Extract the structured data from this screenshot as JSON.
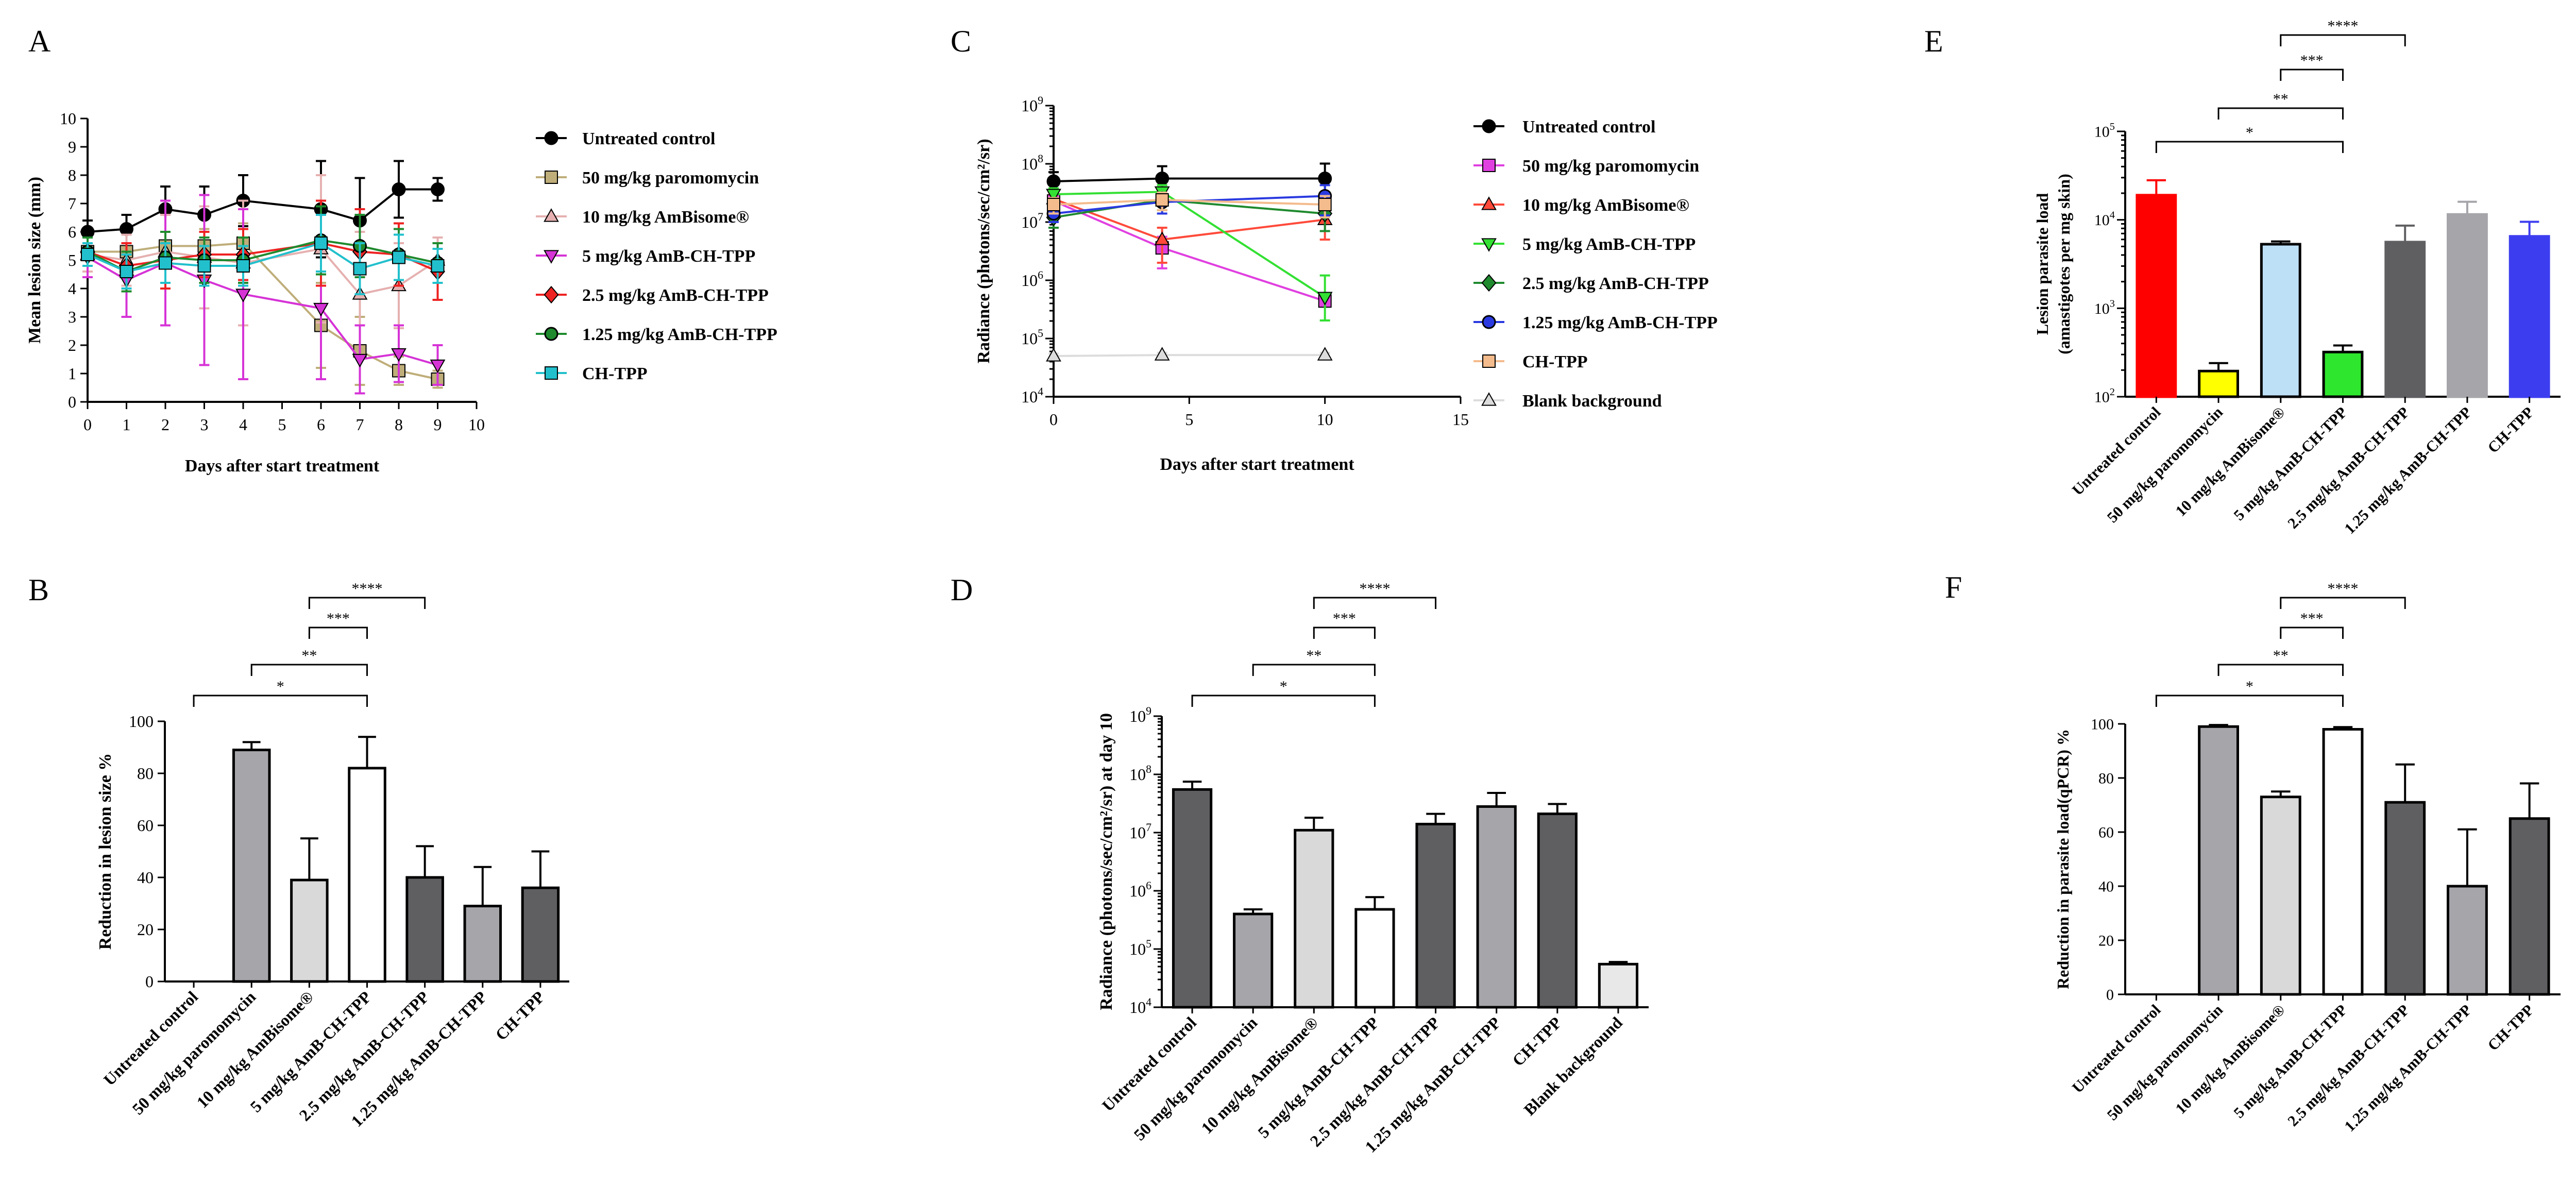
{
  "figure": {
    "panel_letters": [
      "A",
      "B",
      "C",
      "D",
      "E",
      "F"
    ]
  },
  "chart_data": [
    {
      "id": "A",
      "type": "line",
      "xlabel": "Days after start treatment",
      "ylabel": "Mean lesion size (mm)",
      "xlim": [
        0,
        10
      ],
      "ylim": [
        0,
        10
      ],
      "x_ticks": [
        "0",
        "1",
        "2",
        "3",
        "4",
        "5",
        "6",
        "7",
        "8",
        "9",
        "10"
      ],
      "y_ticks": [
        "0",
        "1",
        "2",
        "3",
        "4",
        "5",
        "6",
        "7",
        "8",
        "9",
        "10"
      ],
      "x": [
        0,
        1,
        2,
        3,
        4,
        6,
        7,
        8,
        9
      ],
      "legend_position": "right",
      "series": [
        {
          "name": "Untreated control",
          "color": "#000000",
          "marker": "circle",
          "values": [
            6.0,
            6.1,
            6.8,
            6.6,
            7.1,
            6.8,
            6.4,
            7.5,
            7.5
          ],
          "errors": [
            0.4,
            0.5,
            0.8,
            1.0,
            0.9,
            1.7,
            1.5,
            1.0,
            0.4
          ]
        },
        {
          "name": "50 mg/kg paromomycin",
          "color": "#bfae7a",
          "marker": "square",
          "values": [
            5.3,
            5.3,
            5.5,
            5.5,
            5.6,
            2.7,
            1.8,
            1.1,
            0.8
          ],
          "errors": [
            0.5,
            0.6,
            0.5,
            0.6,
            0.7,
            1.5,
            1.2,
            0.5,
            0.3
          ]
        },
        {
          "name": "10 mg/kg AmBisome®",
          "color": "#e6b0b0",
          "marker": "triangle-up",
          "values": [
            5.2,
            5.0,
            5.3,
            5.1,
            4.9,
            5.4,
            3.8,
            4.1,
            5.0
          ],
          "errors": [
            0.6,
            0.9,
            1.3,
            1.8,
            2.2,
            2.6,
            2.2,
            1.5,
            0.8
          ]
        },
        {
          "name": "5 mg/kg AmB-CH-TPP",
          "color": "#d633d6",
          "marker": "triangle-down",
          "values": [
            5.1,
            4.3,
            4.9,
            4.3,
            3.8,
            3.3,
            1.5,
            1.7,
            1.3
          ],
          "errors": [
            0.7,
            1.3,
            2.2,
            3.0,
            3.0,
            2.5,
            1.2,
            1.0,
            0.7
          ]
        },
        {
          "name": "2.5 mg/kg AmB-CH-TPP",
          "color": "#ee2222",
          "marker": "diamond",
          "values": [
            5.3,
            4.8,
            5.0,
            5.2,
            5.2,
            5.6,
            5.3,
            5.2,
            4.6
          ],
          "errors": [
            0.5,
            0.8,
            1.0,
            0.8,
            0.9,
            1.5,
            1.5,
            1.1,
            1.0
          ]
        },
        {
          "name": "1.25 mg/kg AmB-CH-TPP",
          "color": "#1f8a2e",
          "marker": "circle",
          "values": [
            5.3,
            4.6,
            5.1,
            5.0,
            5.0,
            5.7,
            5.5,
            5.2,
            4.9
          ],
          "errors": [
            0.5,
            0.7,
            0.9,
            0.8,
            0.8,
            1.2,
            1.1,
            0.9,
            0.7
          ]
        },
        {
          "name": "CH-TPP",
          "color": "#22c0cc",
          "marker": "square",
          "values": [
            5.2,
            4.6,
            4.9,
            4.8,
            4.8,
            5.6,
            4.7,
            5.1,
            4.8
          ],
          "errors": [
            0.4,
            0.6,
            0.7,
            0.7,
            0.7,
            1.0,
            0.9,
            0.8,
            0.6
          ]
        }
      ]
    },
    {
      "id": "B",
      "type": "bar",
      "ylabel": "Reduction in lesion size %",
      "ylim": [
        0,
        100
      ],
      "y_ticks": [
        "0",
        "20",
        "40",
        "60",
        "80",
        "100"
      ],
      "categories": [
        "Untreated control",
        "50 mg/kg paromomycin",
        "10 mg/kg AmBisome®",
        "5 mg/kg AmB-CH-TPP",
        "2.5 mg/kg AmB-CH-TPP",
        "1.25 mg/kg AmB-CH-TPP",
        "CH-TPP"
      ],
      "values": [
        0,
        89,
        39,
        82,
        40,
        29,
        36
      ],
      "errors": [
        0,
        3,
        16,
        12,
        12,
        15,
        14
      ],
      "colors": [
        "#a5a5aa",
        "#a5a5aa",
        "#d9d9d9",
        "#ffffff",
        "#5f5f62",
        "#a5a5aa",
        "#5f5f62"
      ],
      "significance": [
        {
          "from": 0,
          "to": 3,
          "label": "*"
        },
        {
          "from": 1,
          "to": 3,
          "label": "**"
        },
        {
          "from": 2,
          "to": 3,
          "label": "***"
        },
        {
          "from": 2,
          "to": 4,
          "label": "****"
        }
      ]
    },
    {
      "id": "C",
      "type": "line",
      "y_scale": "log",
      "xlabel": "Days after start treatment",
      "ylabel": "Radiance (photons/sec/cm²/sr)",
      "xlim": [
        0,
        15
      ],
      "ylim_log10": [
        4,
        9
      ],
      "x_ticks": [
        "0",
        "5",
        "10",
        "15"
      ],
      "y_tick_exponents": [
        "4",
        "5",
        "6",
        "7",
        "8",
        "9"
      ],
      "x": [
        0,
        4,
        10
      ],
      "legend_position": "right",
      "series": [
        {
          "name": "Untreated control",
          "color": "#000000",
          "marker": "circle",
          "values": [
            50000000,
            56000000,
            56000000
          ],
          "errors_up": [
            22000000,
            35000000,
            45000000
          ]
        },
        {
          "name": "50 mg/kg paromomycin",
          "color": "#e040e0",
          "marker": "square",
          "values": [
            23000000,
            3600000,
            440000
          ],
          "errors_up": [
            5000000,
            2000000,
            80000
          ]
        },
        {
          "name": "10 mg/kg AmBisome®",
          "color": "#ff4a3a",
          "marker": "triangle-up",
          "values": [
            25000000,
            5000000,
            11000000
          ],
          "errors_up": [
            6000000,
            3000000,
            6000000
          ]
        },
        {
          "name": "5 mg/kg AmB-CH-TPP",
          "color": "#33e033",
          "marker": "triangle-down",
          "values": [
            30000000,
            33000000,
            510000
          ],
          "errors_up": [
            8000000,
            10000000,
            700000
          ]
        },
        {
          "name": "2.5 mg/kg AmB-CH-TPP",
          "color": "#1f8a2e",
          "marker": "diamond",
          "values": [
            12000000,
            24000000,
            14000000
          ],
          "errors_up": [
            4000000,
            8000000,
            7000000
          ]
        },
        {
          "name": "1.25 mg/kg AmB-CH-TPP",
          "color": "#2a3ae0",
          "marker": "circle",
          "values": [
            14000000,
            22000000,
            28000000
          ],
          "errors_up": [
            4000000,
            8000000,
            15000000
          ]
        },
        {
          "name": "CH-TPP",
          "color": "#f4bb8c",
          "marker": "square",
          "values": [
            20000000,
            24000000,
            20000000
          ],
          "errors_up": [
            6000000,
            8000000,
            8000000
          ]
        },
        {
          "name": "Blank background",
          "color": "#dcdcdc",
          "marker": "triangle-up",
          "values": [
            50000,
            52000,
            52000
          ],
          "errors_up": [
            5000,
            5000,
            5000
          ]
        }
      ]
    },
    {
      "id": "D",
      "type": "bar",
      "y_scale": "log",
      "ylabel": "Radiance (photons/sec/cm²/sr) at day 10",
      "ylim_log10": [
        4,
        9
      ],
      "y_tick_exponents": [
        "4",
        "5",
        "6",
        "7",
        "8",
        "9"
      ],
      "categories": [
        "Untreated control",
        "50 mg/kg paromomycin",
        "10 mg/kg AmBisome®",
        "5 mg/kg AmB-CH-TPP",
        "2.5 mg/kg AmB-CH-TPP",
        "1.25 mg/kg AmB-CH-TPP",
        "CH-TPP",
        "Blank background"
      ],
      "values": [
        55000000,
        400000,
        11000000,
        480000,
        14000000,
        28000000,
        21000000,
        55000
      ],
      "errors_up": [
        20000000,
        80000,
        7000000,
        300000,
        7000000,
        20000000,
        10000000,
        5000
      ],
      "colors": [
        "#5f5f62",
        "#a5a5aa",
        "#d9d9d9",
        "#ffffff",
        "#5f5f62",
        "#a5a5aa",
        "#5f5f62",
        "#e8e8e8"
      ],
      "significance": [
        {
          "from": 0,
          "to": 3,
          "label": "*"
        },
        {
          "from": 1,
          "to": 3,
          "label": "**"
        },
        {
          "from": 2,
          "to": 3,
          "label": "***"
        },
        {
          "from": 2,
          "to": 4,
          "label": "****"
        }
      ]
    },
    {
      "id": "E",
      "type": "bar",
      "y_scale": "log",
      "ylabel": "Lesion parasite load",
      "ylabel2": "(amastigotes per mg skin)",
      "ylim_log10": [
        2,
        5
      ],
      "y_tick_exponents": [
        "2",
        "3",
        "4",
        "5"
      ],
      "categories": [
        "Untreated control",
        "50 mg/kg paromomycin",
        "10 mg/kg AmBisome®",
        "5 mg/kg AmB-CH-TPP",
        "2.5 mg/kg AmB-CH-TPP",
        "1.25 mg/kg AmB-CH-TPP",
        "CH-TPP"
      ],
      "values": [
        19000,
        195,
        5300,
        320,
        5600,
        11500,
        6500
      ],
      "errors_up": [
        9000,
        45,
        400,
        60,
        3000,
        4500,
        3000
      ],
      "colors": [
        "#ff0000",
        "#ffff00",
        "#bde0f7",
        "#2ee62e",
        "#5f5f62",
        "#a5a5aa",
        "#3d3df0"
      ],
      "significance": [
        {
          "from": 0,
          "to": 3,
          "label": "*"
        },
        {
          "from": 1,
          "to": 3,
          "label": "**"
        },
        {
          "from": 2,
          "to": 3,
          "label": "***"
        },
        {
          "from": 2,
          "to": 4,
          "label": "****"
        }
      ]
    },
    {
      "id": "F",
      "type": "bar",
      "ylabel": "Reduction in parasite load(qPCR) %",
      "ylim": [
        0,
        100
      ],
      "y_ticks": [
        "0",
        "20",
        "40",
        "60",
        "80",
        "100"
      ],
      "categories": [
        "Untreated control",
        "50 mg/kg paromomycin",
        "10 mg/kg AmBisome®",
        "5 mg/kg AmB-CH-TPP",
        "2.5 mg/kg AmB-CH-TPP",
        "1.25 mg/kg AmB-CH-TPP",
        "CH-TPP"
      ],
      "values": [
        0,
        99,
        73,
        98,
        71,
        40,
        65
      ],
      "errors": [
        0,
        0.6,
        2,
        0.8,
        14,
        21,
        13
      ],
      "colors": [
        "#a5a5aa",
        "#a5a5aa",
        "#d9d9d9",
        "#ffffff",
        "#5f5f62",
        "#a5a5aa",
        "#5f5f62"
      ],
      "significance": [
        {
          "from": 0,
          "to": 3,
          "label": "*"
        },
        {
          "from": 1,
          "to": 3,
          "label": "**"
        },
        {
          "from": 2,
          "to": 3,
          "label": "***"
        },
        {
          "from": 2,
          "to": 4,
          "label": "****"
        }
      ]
    }
  ]
}
